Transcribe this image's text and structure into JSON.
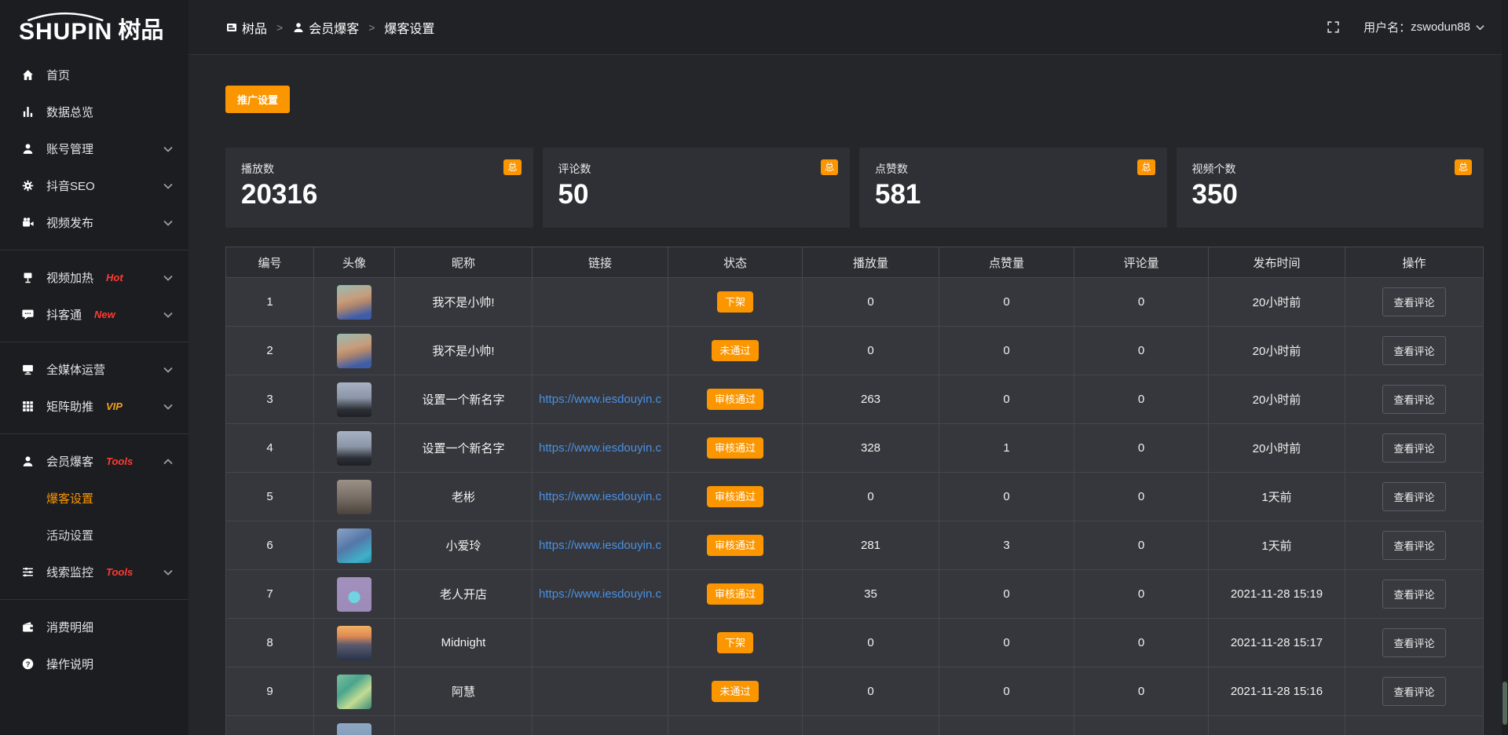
{
  "brand": {
    "logo_en": "SHUPIN",
    "logo_cn": "树品"
  },
  "topbar": {
    "separator": ">",
    "breadcrumb": [
      {
        "label": "树品",
        "icon": "dashboard-icon"
      },
      {
        "label": "会员爆客",
        "icon": "user-icon"
      },
      {
        "label": "爆客设置",
        "icon": ""
      }
    ],
    "username_label": "用户名：",
    "username": "zswodun88"
  },
  "sidebar": {
    "items": [
      {
        "label": "首页",
        "icon": "home-icon"
      },
      {
        "label": "数据总览",
        "icon": "chart-icon"
      },
      {
        "label": "账号管理",
        "icon": "user-icon",
        "chevron": "down"
      },
      {
        "label": "抖音SEO",
        "icon": "gear-icon",
        "chevron": "down"
      },
      {
        "label": "视频发布",
        "icon": "camera-icon",
        "chevron": "down",
        "divider_after": true
      },
      {
        "label": "视频加热",
        "icon": "screen-icon",
        "tag": "Hot",
        "tag_color": "#ff3b30",
        "chevron": "down"
      },
      {
        "label": "抖客通",
        "icon": "chat-icon",
        "tag": "New",
        "tag_color": "#ff3b30",
        "chevron": "down",
        "divider_after": true
      },
      {
        "label": "全媒体运营",
        "icon": "monitor-icon",
        "chevron": "down"
      },
      {
        "label": "矩阵助推",
        "icon": "grid-icon",
        "tag": "VIP",
        "tag_color": "#f0a020",
        "chevron": "down",
        "divider_after": true
      },
      {
        "label": "会员爆客",
        "icon": "member-icon",
        "tag": "Tools",
        "tag_color": "#ff3b30",
        "chevron": "up",
        "children": [
          {
            "label": "爆客设置",
            "active": true
          },
          {
            "label": "活动设置",
            "active": false
          }
        ]
      },
      {
        "label": "线索监控",
        "icon": "sliders-icon",
        "tag": "Tools",
        "tag_color": "#ff3b30",
        "chevron": "down",
        "divider_after": true
      },
      {
        "label": "消费明细",
        "icon": "wallet-icon"
      },
      {
        "label": "操作说明",
        "icon": "question-icon"
      }
    ]
  },
  "toolbar": {
    "promo_button": "推广设置"
  },
  "stats": [
    {
      "label": "播放数",
      "value": "20316",
      "badge": "总"
    },
    {
      "label": "评论数",
      "value": "50",
      "badge": "总"
    },
    {
      "label": "点赞数",
      "value": "581",
      "badge": "总"
    },
    {
      "label": "视频个数",
      "value": "350",
      "badge": "总"
    }
  ],
  "table": {
    "columns": [
      "编号",
      "头像",
      "昵称",
      "链接",
      "状态",
      "播放量",
      "点赞量",
      "评论量",
      "发布时间",
      "操作"
    ],
    "action_label": "查看评论",
    "rows": [
      {
        "id": "1",
        "nickname": "我不是小帅!",
        "link": "",
        "status": "下架",
        "plays": "0",
        "likes": "0",
        "comments": "0",
        "time": "20小时前",
        "avatar_gradient": "linear-gradient(165deg,#9db8ac 5%,#c79d7d 40%,#b3886b 55%,#3e5da8 85%)"
      },
      {
        "id": "2",
        "nickname": "我不是小帅!",
        "link": "",
        "status": "未通过",
        "plays": "0",
        "likes": "0",
        "comments": "0",
        "time": "20小时前",
        "avatar_gradient": "linear-gradient(165deg,#9db8ac 5%,#c79d7d 40%,#b3886b 55%,#3e5da8 85%)"
      },
      {
        "id": "3",
        "nickname": "设置一个新名字",
        "link": "https://www.iesdouyin.c",
        "status": "审核通过",
        "plays": "263",
        "likes": "0",
        "comments": "0",
        "time": "20小时前",
        "avatar_gradient": "linear-gradient(180deg,#a7b2c4 0%,#8b95a6 45%,#2c2f36 78%,#1e2026 100%)"
      },
      {
        "id": "4",
        "nickname": "设置一个新名字",
        "link": "https://www.iesdouyin.c",
        "status": "审核通过",
        "plays": "328",
        "likes": "1",
        "comments": "0",
        "time": "20小时前",
        "avatar_gradient": "linear-gradient(180deg,#a7b2c4 0%,#8b95a6 45%,#2c2f36 78%,#1e2026 100%)"
      },
      {
        "id": "5",
        "nickname": "老彬",
        "link": "https://www.iesdouyin.c",
        "status": "审核通过",
        "plays": "0",
        "likes": "0",
        "comments": "0",
        "time": "1天前",
        "avatar_gradient": "linear-gradient(180deg,#9b9187 0%,#7a6f66 50%,#4a423c 100%)"
      },
      {
        "id": "6",
        "nickname": "小爱玲",
        "link": "https://www.iesdouyin.c",
        "status": "审核通过",
        "plays": "281",
        "likes": "3",
        "comments": "0",
        "time": "1天前",
        "avatar_gradient": "linear-gradient(150deg,#8aa3c4 0%,#5577a8 45%,#3fb0c9 80%,#2c8ea6 100%)"
      },
      {
        "id": "7",
        "nickname": "老人开店",
        "link": "https://www.iesdouyin.c",
        "status": "审核通过",
        "plays": "35",
        "likes": "0",
        "comments": "0",
        "time": "2021-11-28 15:19",
        "avatar_gradient": "radial-gradient(circle at 50% 58%,#6fd3e2 0%,#6fd3e2 22%,rgba(0,0,0,0) 23%),linear-gradient(180deg,#a291bd,#9c8bb8)"
      },
      {
        "id": "8",
        "nickname": "Midnight",
        "link": "",
        "status": "下架",
        "plays": "0",
        "likes": "0",
        "comments": "0",
        "time": "2021-11-28 15:17",
        "avatar_gradient": "linear-gradient(180deg,#f2b066 0%,#e08a52 30%,#5a5a6e 55%,#27334a 100%)"
      },
      {
        "id": "9",
        "nickname": "阿慧",
        "link": "",
        "status": "未通过",
        "plays": "0",
        "likes": "0",
        "comments": "0",
        "time": "2021-11-28 15:16",
        "avatar_gradient": "linear-gradient(140deg,#7bc0a0 0%,#49a58d 35%,#c3dc92 65%,#3a8a78 100%)"
      },
      {
        "id": "",
        "nickname": "",
        "link": "",
        "status": "",
        "plays": "",
        "likes": "",
        "comments": "",
        "time": "",
        "avatar_gradient": "linear-gradient(180deg,#8fa9c4,#6f8cab)"
      }
    ]
  },
  "colors": {
    "accent_orange": "#fb9600",
    "link_blue": "#4a90e2",
    "tag_red": "#ff3b30",
    "tag_vip": "#f0a020"
  }
}
